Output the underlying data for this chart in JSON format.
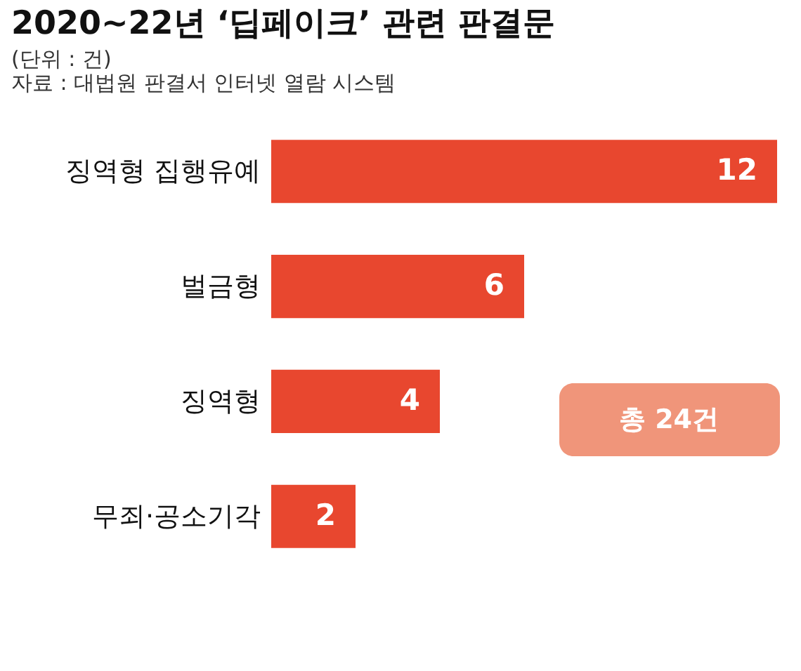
{
  "chart_data": {
    "type": "bar",
    "orientation": "horizontal",
    "title": "2020~22년 ‘딥페이크’ 관련 판결문",
    "subtitle": "(단위 : 건)",
    "annotations": [
      "자료 : 대법원 판결서 인터넷 열람 시스템",
      "총 24건"
    ],
    "categories": [
      "징역형 집행유예",
      "벌금형",
      "징역형",
      "무죄·공소기각"
    ],
    "values": [
      12,
      6,
      4,
      2
    ],
    "color": "#e8472f",
    "data_labels": true
  }
}
